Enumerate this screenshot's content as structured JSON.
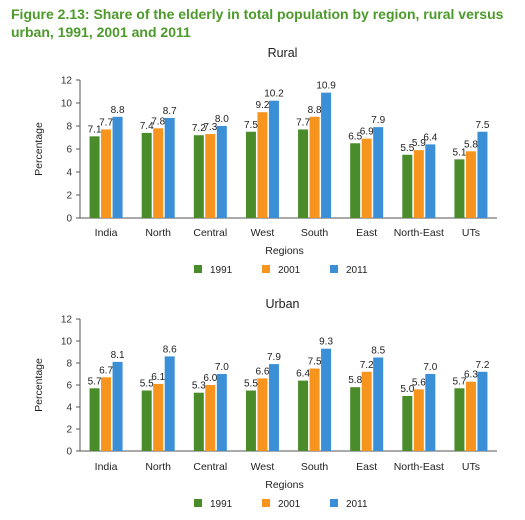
{
  "figure_title": "Figure 2.13: Share of the elderly in total population by region, rural versus urban, 1991, 2001 and 2011",
  "colors": {
    "1991": "#4a8c2a",
    "2001": "#f7941d",
    "2011": "#3a8fd6"
  },
  "chart_data": [
    {
      "type": "bar",
      "title": "Rural",
      "xlabel": "Regions",
      "ylabel": "Percentage",
      "ylim": [
        0,
        12
      ],
      "yticks": [
        0,
        2,
        4,
        6,
        8,
        10,
        12
      ],
      "categories": [
        "India",
        "North",
        "Central",
        "West",
        "South",
        "East",
        "North-East",
        "UTs"
      ],
      "series": [
        {
          "name": "1991",
          "values": [
            7.1,
            7.4,
            7.2,
            7.5,
            7.7,
            6.5,
            5.5,
            5.1
          ]
        },
        {
          "name": "2001",
          "values": [
            7.7,
            7.8,
            7.3,
            9.2,
            8.8,
            6.9,
            5.9,
            5.8
          ]
        },
        {
          "name": "2011",
          "values": [
            8.8,
            8.7,
            8.0,
            10.2,
            10.9,
            7.9,
            6.4,
            7.5
          ]
        }
      ],
      "legend": "bottom",
      "grid": false
    },
    {
      "type": "bar",
      "title": "Urban",
      "xlabel": "Regions",
      "ylabel": "Percentage",
      "ylim": [
        0,
        12
      ],
      "yticks": [
        0,
        2,
        4,
        6,
        8,
        10,
        12
      ],
      "categories": [
        "India",
        "North",
        "Central",
        "West",
        "South",
        "East",
        "North-East",
        "UTs"
      ],
      "series": [
        {
          "name": "1991",
          "values": [
            5.7,
            5.5,
            5.3,
            5.5,
            6.4,
            5.8,
            5.0,
            5.7
          ]
        },
        {
          "name": "2001",
          "values": [
            6.7,
            6.1,
            6.0,
            6.6,
            7.5,
            7.2,
            5.6,
            6.3
          ]
        },
        {
          "name": "2011",
          "values": [
            8.1,
            8.6,
            7.0,
            7.9,
            9.3,
            8.5,
            7.0,
            7.2
          ]
        }
      ],
      "legend": "bottom",
      "grid": false
    }
  ]
}
